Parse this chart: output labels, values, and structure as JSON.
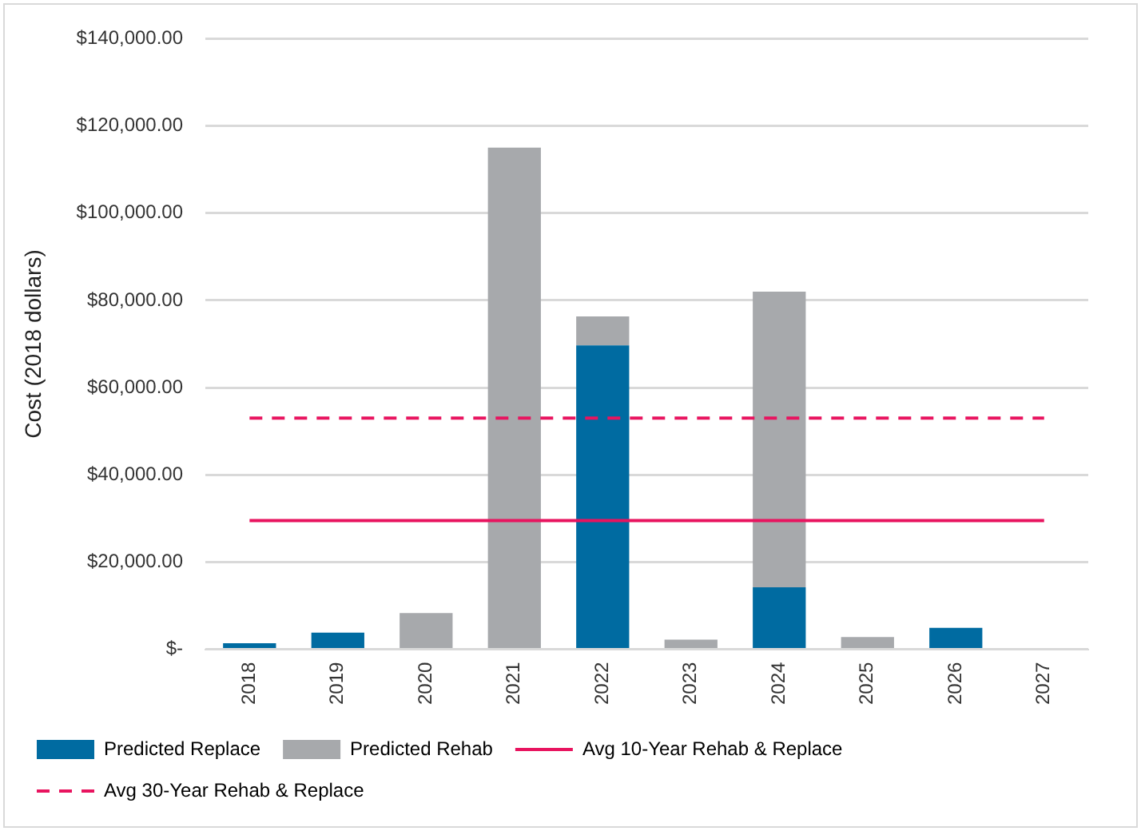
{
  "chart_data": {
    "type": "bar",
    "ylabel": "Cost (2018 dollars)",
    "categories": [
      "2018",
      "2019",
      "2020",
      "2021",
      "2022",
      "2023",
      "2024",
      "2025",
      "2026",
      "2027"
    ],
    "stacked": true,
    "series": [
      {
        "name": "Predicted Replace",
        "color": "#006ba1",
        "values": [
          1400,
          3800,
          0,
          0,
          69700,
          0,
          14200,
          0,
          4900,
          0
        ]
      },
      {
        "name": "Predicted Rehab",
        "color": "#a7a9ac",
        "values": [
          0,
          0,
          8300,
          115000,
          6600,
          2200,
          67800,
          2800,
          0,
          0
        ]
      }
    ],
    "ref_lines": [
      {
        "axis": "y",
        "value": 29500,
        "label": "Avg 10-Year Rehab & Replace",
        "color": "#e8145f",
        "line_style": "solid"
      },
      {
        "axis": "y",
        "value": 53000,
        "label": "Avg 30-Year Rehab & Replace",
        "color": "#e8145f",
        "line_style": "dashed"
      }
    ],
    "ylim": [
      0,
      140000
    ],
    "yticks": [
      {
        "value": 0,
        "label": "$-"
      },
      {
        "value": 20000,
        "label": "$20,000.00"
      },
      {
        "value": 40000,
        "label": "$40,000.00"
      },
      {
        "value": 60000,
        "label": "$60,000.00"
      },
      {
        "value": 80000,
        "label": "$80,000.00"
      },
      {
        "value": 100000,
        "label": "$100,000.00"
      },
      {
        "value": 120000,
        "label": "$120,000.00"
      },
      {
        "value": 140000,
        "label": "$140,000.00"
      }
    ],
    "grid": "y",
    "legend": "bottom"
  }
}
